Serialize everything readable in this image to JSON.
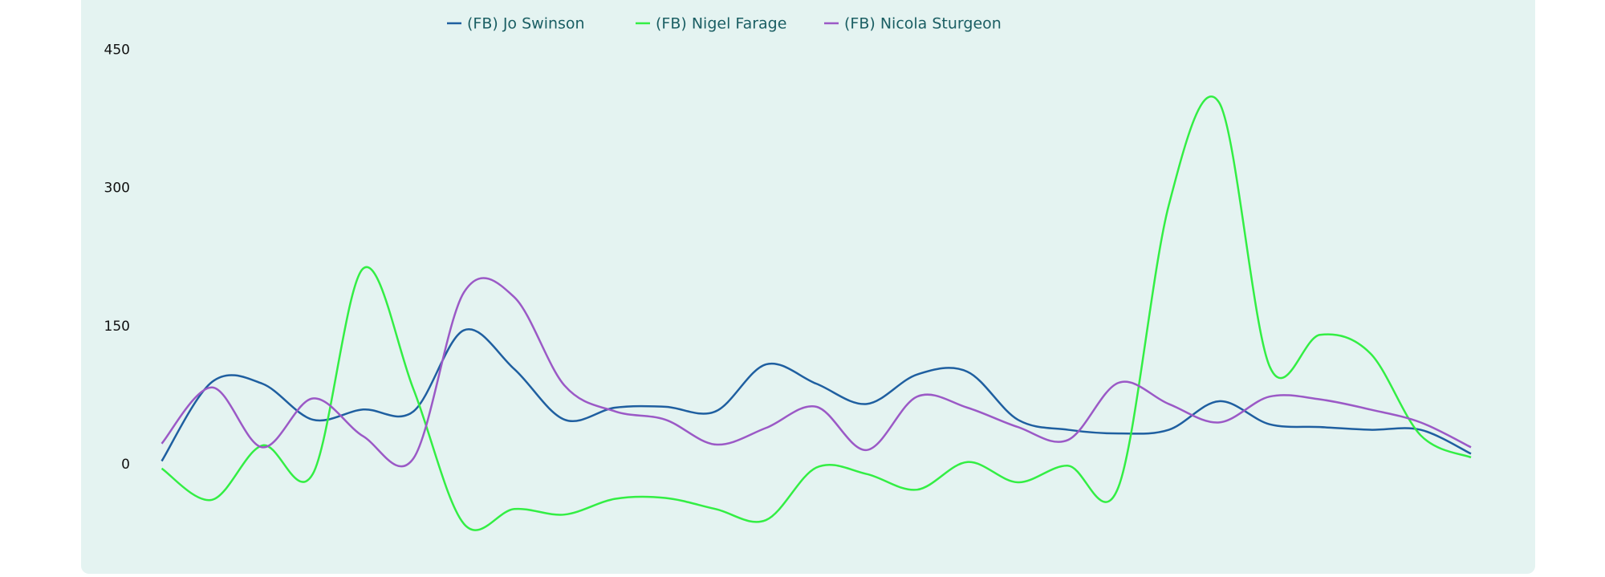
{
  "chart_data": {
    "type": "line",
    "categories": [
      null,
      null,
      null,
      null,
      null,
      null,
      null,
      null,
      null,
      null,
      null,
      null,
      null,
      null,
      null,
      null,
      null,
      null,
      null,
      null,
      null,
      null,
      null,
      null,
      null,
      null,
      null
    ],
    "series": [
      {
        "name": "(FB) Jo Swinson",
        "color": "#1f5fa0",
        "values": [
          4,
          90,
          88,
          49,
          60,
          58,
          146,
          104,
          49,
          62,
          63,
          58,
          109,
          88,
          66,
          98,
          101,
          49,
          38,
          34,
          38,
          69,
          44,
          41,
          38,
          38,
          12
        ]
      },
      {
        "name": "(FB) Nigel Farage",
        "color": "#33ee44",
        "values": [
          -4,
          -38,
          21,
          -10,
          213,
          82,
          -64,
          -48,
          -54,
          -37,
          -36,
          -48,
          -60,
          -3,
          -10,
          -27,
          3,
          -19,
          -1,
          -24,
          282,
          393,
          107,
          141,
          121,
          32,
          8
        ]
      },
      {
        "name": "(FB) Nicola Sturgeon",
        "color": "#9b59c6",
        "values": [
          23,
          84,
          19,
          72,
          31,
          7,
          187,
          182,
          86,
          58,
          49,
          22,
          40,
          63,
          16,
          74,
          62,
          41,
          27,
          89,
          66,
          46,
          74,
          71,
          60,
          46,
          19
        ]
      }
    ],
    "ylim": [
      -100,
      450
    ],
    "yticks": [
      0,
      150,
      300,
      450
    ],
    "grid": false,
    "legend": "top"
  }
}
